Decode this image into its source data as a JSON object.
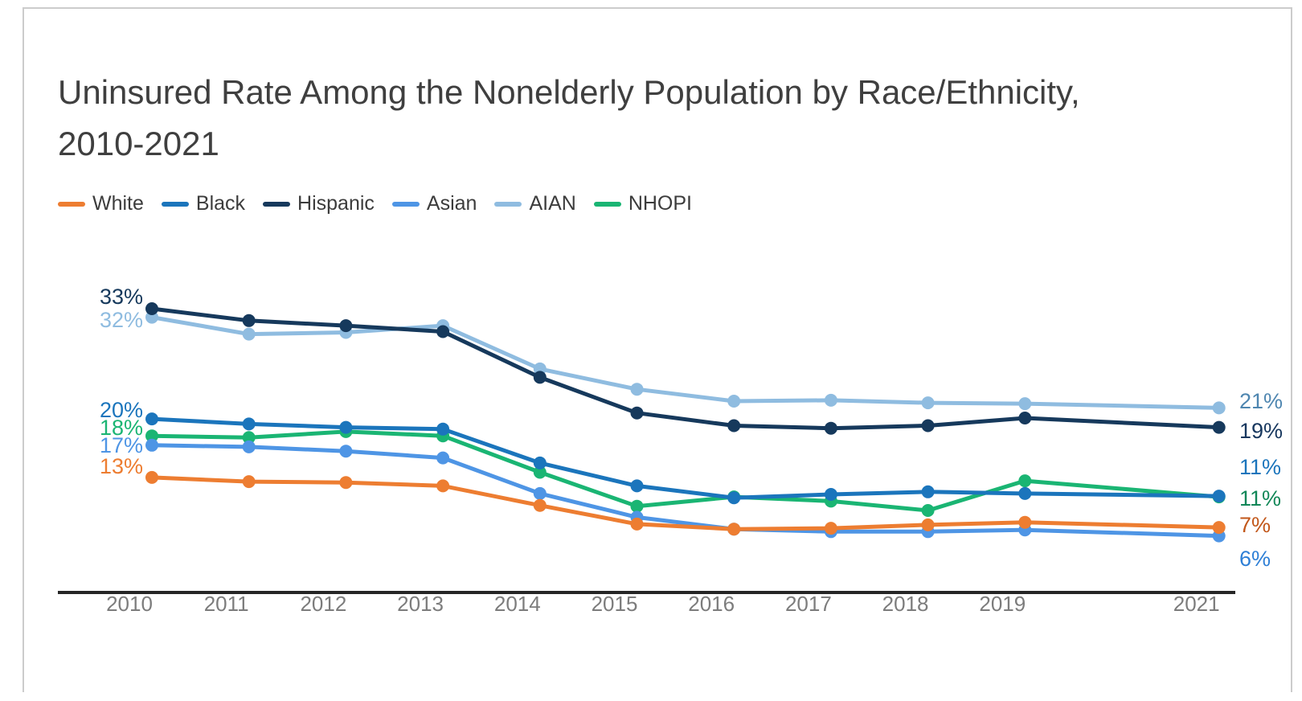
{
  "card": {
    "border_color": "#cccccc",
    "background": "#ffffff"
  },
  "title": {
    "line1": "Uninsured Rate Among the Nonelderly Population by Race/Ethnicity,",
    "line2": "2010-2021",
    "color": "#3f3f3f"
  },
  "chart_data": {
    "type": "line",
    "title": "Uninsured Rate Among the Nonelderly Population by Race/Ethnicity, 2010-2021",
    "x": [
      2010,
      2011,
      2012,
      2013,
      2014,
      2015,
      2016,
      2017,
      2018,
      2019,
      2021
    ],
    "x_tick_labels": [
      "2010",
      "2011",
      "2012",
      "2013",
      "2014",
      "2015",
      "2016",
      "2017",
      "2018",
      "2019",
      "2021"
    ],
    "ylim": [
      0,
      35
    ],
    "grid": false,
    "legend_position": "top-left",
    "axis_color": "#262626",
    "tick_label_color": "#7c7c7c",
    "series": [
      {
        "name": "White",
        "color": "#ED7D31",
        "values": [
          13.1,
          12.6,
          12.5,
          12.1,
          9.8,
          7.6,
          7.0,
          7.1,
          7.5,
          7.8,
          7.2
        ],
        "start_label": {
          "text": "13%",
          "color": "#ED7D31"
        },
        "end_label": {
          "text": "7%",
          "color": "#C2571A"
        }
      },
      {
        "name": "Black",
        "color": "#1B75BC",
        "values": [
          20.0,
          19.4,
          19.0,
          18.8,
          14.8,
          12.1,
          10.7,
          11.1,
          11.4,
          11.2,
          10.9
        ],
        "start_label": {
          "text": "20%",
          "color": "#1B75BC"
        },
        "end_label": {
          "text": "11%",
          "color": "#1B75BC"
        }
      },
      {
        "name": "Hispanic",
        "color": "#16395C",
        "values": [
          33.0,
          31.6,
          31.0,
          30.3,
          24.9,
          20.7,
          19.2,
          18.9,
          19.2,
          20.1,
          19.0
        ],
        "start_label": {
          "text": "33%",
          "color": "#16395C"
        },
        "end_label": {
          "text": "19%",
          "color": "#17375E"
        }
      },
      {
        "name": "Asian",
        "color": "#4E95E5",
        "values": [
          16.9,
          16.7,
          16.2,
          15.4,
          11.2,
          8.4,
          7.0,
          6.7,
          6.7,
          6.9,
          6.2
        ],
        "start_label": {
          "text": "17%",
          "color": "#4E95E5"
        },
        "end_label": {
          "text": "6%",
          "color": "#2E7FD6"
        }
      },
      {
        "name": "AIAN",
        "color": "#8FBCE0",
        "values": [
          32.0,
          30.0,
          30.2,
          31.0,
          25.9,
          23.5,
          22.1,
          22.2,
          21.9,
          21.8,
          21.3
        ],
        "start_label": {
          "text": "32%",
          "color": "#8FBCE0"
        },
        "end_label": {
          "text": "21%",
          "color": "#4E86B0"
        }
      },
      {
        "name": "NHOPI",
        "color": "#1AB573",
        "values": [
          18.0,
          17.8,
          18.5,
          18.0,
          13.7,
          9.7,
          10.8,
          10.3,
          9.2,
          12.7,
          10.8
        ],
        "start_label": {
          "text": "18%",
          "color": "#1AB573"
        },
        "end_label": {
          "text": "11%",
          "color": "#128758"
        }
      }
    ]
  }
}
